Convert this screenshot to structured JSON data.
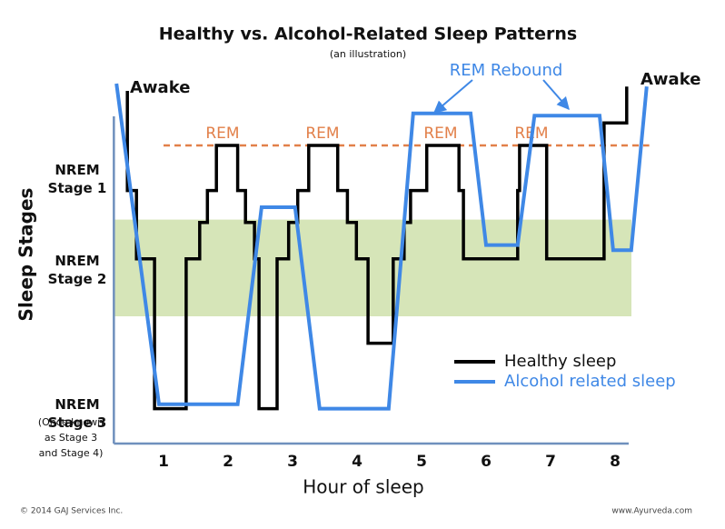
{
  "chart_data": {
    "type": "line",
    "title": "Healthy vs. Alcohol-Related Sleep Patterns",
    "subtitle": "(an illustration)",
    "y_label": "Sleep Stages",
    "x_label": "Hour of sleep",
    "xlim": [
      0.23,
      8.61
    ],
    "ylim": [
      0,
      5
    ],
    "xticks": [
      1,
      2,
      3,
      4,
      5,
      6,
      7,
      8
    ],
    "yticks": [
      {
        "value": 3.64,
        "label": "NREM Stage 1"
      },
      {
        "value": 2.39,
        "label": "NREM Stage 2"
      },
      {
        "value": 0.41,
        "label": "NREM Stage 3"
      }
    ],
    "stage3_note": [
      "(Once known",
      "as Stage 3",
      "and Stage 4)"
    ],
    "shaded_band": {
      "ylim": [
        1.75,
        3.08
      ],
      "color": "#d6e5b8"
    },
    "reference_line": {
      "y": 4.1,
      "xlim": [
        1.0,
        8.53
      ],
      "color": "#e2804a",
      "dashed": true
    },
    "annotations": {
      "awake_left": "Awake",
      "awake_right": "Awake",
      "rem": [
        "REM",
        "REM",
        "REM",
        "REM"
      ],
      "rem_rebound": "REM Rebound"
    },
    "legend": "lower right",
    "series": [
      {
        "name": "Healthy sleep",
        "color": "#000000",
        "x": [
          0.44,
          0.44,
          0.58,
          0.58,
          0.86,
          0.86,
          1.35,
          1.35,
          1.56,
          1.56,
          1.68,
          1.68,
          1.82,
          1.82,
          2.15,
          2.15,
          2.27,
          2.27,
          2.41,
          2.41,
          2.48,
          2.48,
          2.76,
          2.76,
          2.94,
          2.94,
          3.08,
          3.08,
          3.25,
          3.25,
          3.7,
          3.7,
          3.85,
          3.85,
          3.99,
          3.99,
          4.17,
          4.17,
          4.56,
          4.56,
          4.73,
          4.73,
          4.83,
          4.83,
          5.08,
          5.08,
          5.58,
          5.58,
          5.65,
          5.65,
          6.49,
          6.49,
          6.52,
          6.52,
          6.94,
          6.94,
          7.83,
          7.83,
          8.18,
          8.18
        ],
        "values": [
          4.85,
          3.48,
          3.48,
          2.54,
          2.54,
          0.48,
          0.48,
          2.54,
          2.54,
          3.04,
          3.04,
          3.48,
          3.48,
          4.1,
          4.1,
          3.48,
          3.48,
          3.04,
          3.04,
          2.54,
          2.54,
          0.48,
          0.48,
          2.54,
          2.54,
          3.04,
          3.04,
          3.48,
          3.48,
          4.1,
          4.1,
          3.48,
          3.48,
          3.04,
          3.04,
          2.54,
          2.54,
          1.38,
          1.38,
          2.54,
          2.54,
          3.04,
          3.04,
          3.48,
          3.48,
          4.1,
          4.1,
          3.48,
          3.48,
          2.54,
          2.54,
          3.48,
          3.48,
          4.1,
          4.1,
          2.54,
          2.54,
          4.41,
          4.41,
          4.91
        ]
      },
      {
        "name": "Alcohol related sleep",
        "color": "#3f88e6",
        "x": [
          0.27,
          0.93,
          2.15,
          2.52,
          3.04,
          3.42,
          4.49,
          4.87,
          5.76,
          6.0,
          6.49,
          6.75,
          7.76,
          7.97,
          8.25,
          8.49
        ],
        "values": [
          4.95,
          0.54,
          0.54,
          3.25,
          3.25,
          0.48,
          0.48,
          4.54,
          4.54,
          2.73,
          2.73,
          4.51,
          4.51,
          2.66,
          2.66,
          4.91
        ]
      }
    ],
    "footer_left": "© 2014 GAJ Services Inc.",
    "footer_right": "www.Ayurveda.com"
  }
}
